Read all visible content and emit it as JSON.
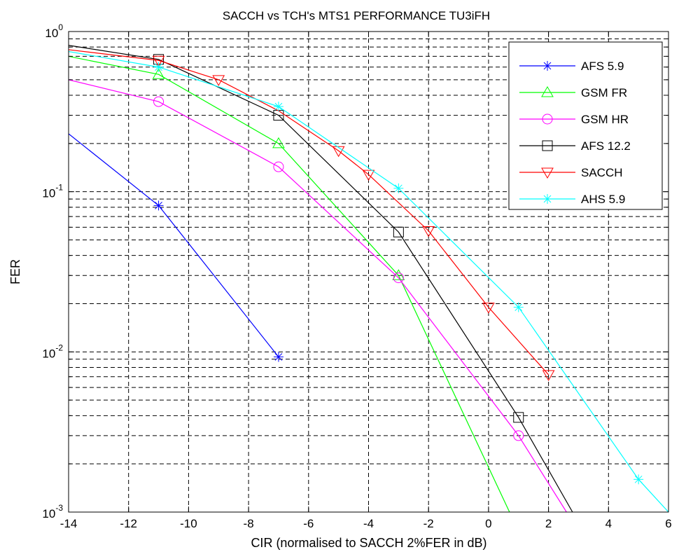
{
  "chart_data": {
    "type": "line",
    "title": "SACCH vs TCH's MTS1 PERFORMANCE TU3iFH",
    "xlabel": "CIR (normalised to SACCH 2%FER in dB)",
    "ylabel": "FER",
    "xlim": [
      -14,
      6
    ],
    "ylim": [
      0.001,
      1
    ],
    "yscale": "log",
    "grid": true,
    "legend_position": "top-right",
    "x_ticks": [
      -14,
      -12,
      -10,
      -8,
      -6,
      -4,
      -2,
      0,
      2,
      4,
      6
    ],
    "x_tick_labels": [
      "-14",
      "-12",
      "-10",
      "-8",
      "-6",
      "-4",
      "-2",
      "0",
      "2",
      "4",
      "6"
    ],
    "y_ticks": [
      0.001,
      0.01,
      0.1,
      1
    ],
    "y_tick_labels": [
      {
        "base": "10",
        "exp": "-3"
      },
      {
        "base": "10",
        "exp": "-2"
      },
      {
        "base": "10",
        "exp": "-1"
      },
      {
        "base": "10",
        "exp": "0"
      }
    ],
    "series": [
      {
        "name": "AFS 5.9",
        "color": "#0000ff",
        "marker": "asterisk",
        "x": [
          -14,
          -11,
          -7
        ],
        "y": [
          0.23,
          0.082,
          0.0093
        ],
        "marker_x": [
          -11,
          -7
        ]
      },
      {
        "name": "GSM FR",
        "color": "#00ff00",
        "marker": "triangle-up",
        "x": [
          -14,
          -11,
          -7,
          -3,
          0.7
        ],
        "y": [
          0.7,
          0.54,
          0.2,
          0.03,
          0.001
        ],
        "marker_x": [
          -11,
          -7,
          -3
        ]
      },
      {
        "name": "GSM HR",
        "color": "#ff00ff",
        "marker": "circle",
        "x": [
          -14,
          -11,
          -7,
          -3,
          1,
          2.6
        ],
        "y": [
          0.5,
          0.365,
          0.143,
          0.029,
          0.003,
          0.001
        ],
        "marker_x": [
          -11,
          -7,
          -3,
          1
        ]
      },
      {
        "name": "AFS 12.2",
        "color": "#000000",
        "marker": "square",
        "x": [
          -14,
          -11,
          -7,
          -3,
          1,
          2.8
        ],
        "y": [
          0.82,
          0.67,
          0.3,
          0.056,
          0.0039,
          0.001
        ],
        "marker_x": [
          -11,
          -7,
          -3,
          1
        ]
      },
      {
        "name": "SACCH",
        "color": "#ff0000",
        "marker": "triangle-down",
        "x": [
          -14,
          -11,
          -9,
          -7,
          -5,
          -4,
          -2,
          0,
          2
        ],
        "y": [
          0.77,
          0.66,
          0.5,
          0.32,
          0.18,
          0.128,
          0.057,
          0.019,
          0.0072
        ],
        "marker_x": [
          -11,
          -9,
          -5,
          -4,
          -2,
          0,
          2
        ]
      },
      {
        "name": "AHS 5.9",
        "color": "#00ffff",
        "marker": "asterisk",
        "x": [
          -14,
          -11,
          -7,
          -3,
          1,
          5,
          6
        ],
        "y": [
          0.75,
          0.6,
          0.34,
          0.105,
          0.019,
          0.0016,
          0.001
        ],
        "marker_x": [
          -11,
          -7,
          -3,
          1,
          5
        ]
      }
    ]
  }
}
